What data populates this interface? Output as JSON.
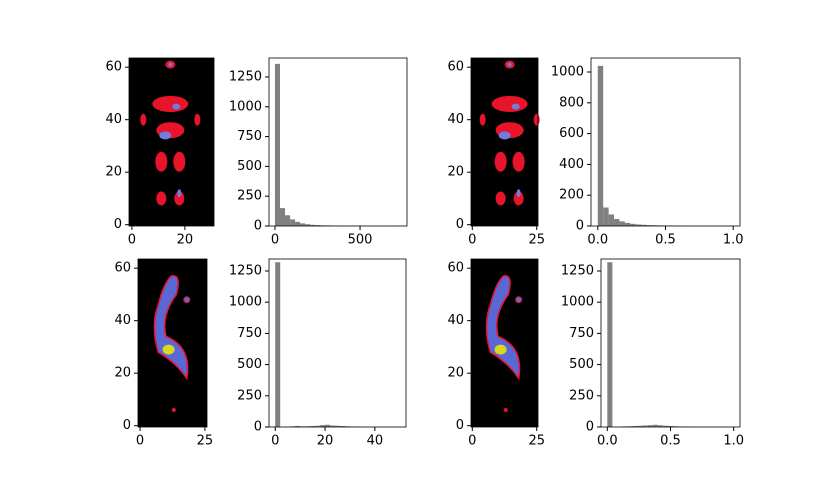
{
  "chart_data": [
    {
      "type": "image",
      "xlim": [
        -1.1,
        31
      ],
      "ylim": [
        -0.5,
        63.5
      ],
      "xticks": [
        0,
        20
      ],
      "yticks": [
        0,
        20,
        40,
        60
      ]
    },
    {
      "type": "histogram",
      "color": "#808080",
      "xlim": [
        -35,
        776
      ],
      "ylim": [
        0,
        1409
      ],
      "xticks": [
        0,
        500
      ],
      "yticks": [
        0,
        250,
        500,
        750,
        1000,
        1250
      ],
      "bins": [
        0,
        29.6,
        59.2,
        88.8,
        118.4,
        148,
        177.6,
        207.2,
        236.8,
        266.4,
        296,
        325.6,
        355.2,
        384.8,
        414.4,
        444,
        473.6,
        503.2,
        532.8,
        562.4,
        592,
        621.6,
        651.2,
        680.8,
        710.4,
        740
      ],
      "values": [
        1360,
        150,
        90,
        55,
        35,
        22,
        15,
        10,
        8,
        6,
        5,
        4,
        3,
        3,
        2,
        2,
        2,
        1,
        1,
        1,
        1,
        1,
        1,
        2,
        3
      ]
    },
    {
      "type": "image",
      "xlim": [
        -0.5,
        25.5
      ],
      "ylim": [
        -0.5,
        63.5
      ],
      "xticks": [
        0,
        25
      ],
      "yticks": [
        0,
        20,
        40,
        60
      ]
    },
    {
      "type": "histogram",
      "color": "#808080",
      "xlim": [
        -0.05,
        1.05
      ],
      "ylim": [
        0,
        1091
      ],
      "xticks": [
        {
          "value": 0,
          "label": "0.0"
        },
        {
          "value": 0.5,
          "label": "0.5"
        },
        {
          "value": 1,
          "label": "1.0"
        }
      ],
      "yticks": [
        0,
        200,
        400,
        600,
        800,
        1000
      ],
      "bins": [
        0,
        0.04,
        0.08,
        0.12,
        0.16,
        0.2,
        0.24,
        0.28,
        0.32,
        0.36,
        0.4,
        0.44,
        0.48,
        0.52,
        0.56,
        0.6,
        0.64,
        0.68,
        0.72,
        0.76,
        0.8,
        0.84,
        0.88,
        0.92,
        0.96,
        1
      ],
      "values": [
        1040,
        120,
        75,
        45,
        30,
        20,
        14,
        10,
        8,
        6,
        5,
        4,
        3,
        3,
        2,
        2,
        2,
        1,
        1,
        1,
        1,
        1,
        1,
        1,
        2
      ]
    },
    {
      "type": "image",
      "xlim": [
        -0.8,
        25.8
      ],
      "ylim": [
        -0.5,
        63.5
      ],
      "xticks": [
        0,
        25
      ],
      "yticks": [
        0,
        20,
        40,
        60
      ]
    },
    {
      "type": "histogram",
      "color": "#808080",
      "xlim": [
        -2.5,
        52.5
      ],
      "ylim": [
        0,
        1346
      ],
      "xticks": [
        0,
        20,
        40
      ],
      "yticks": [
        0,
        250,
        500,
        750,
        1000,
        1250
      ],
      "bins": [
        0,
        2,
        4,
        6,
        8,
        10,
        12,
        14,
        16,
        18,
        20,
        22,
        24,
        26,
        28,
        30,
        32,
        34,
        36,
        38,
        40,
        42,
        44,
        46,
        48,
        50
      ],
      "values": [
        1320,
        0,
        0,
        5,
        8,
        5,
        6,
        8,
        10,
        15,
        18,
        12,
        10,
        8,
        6,
        4,
        3,
        2,
        0,
        0,
        2,
        0,
        0,
        0,
        0
      ]
    },
    {
      "type": "image",
      "xlim": [
        -0.5,
        25.5
      ],
      "ylim": [
        -0.5,
        63.5
      ],
      "xticks": [
        0,
        25
      ],
      "yticks": [
        0,
        20,
        40,
        60
      ]
    },
    {
      "type": "histogram",
      "color": "#808080",
      "xlim": [
        -0.05,
        1.05
      ],
      "ylim": [
        0,
        1346
      ],
      "xticks": [
        {
          "value": 0,
          "label": "0.0"
        },
        {
          "value": 0.5,
          "label": "0.5"
        },
        {
          "value": 1,
          "label": "1.0"
        }
      ],
      "yticks": [
        0,
        250,
        500,
        750,
        1000,
        1250
      ],
      "bins": [
        0,
        0.04,
        0.08,
        0.12,
        0.16,
        0.2,
        0.24,
        0.28,
        0.32,
        0.36,
        0.4,
        0.44,
        0.48,
        0.52,
        0.56,
        0.6,
        0.64,
        0.68,
        0.72,
        0.76,
        0.8,
        0.84,
        0.88,
        0.92,
        0.96,
        1
      ],
      "values": [
        1320,
        0,
        0,
        5,
        6,
        8,
        10,
        12,
        15,
        18,
        14,
        10,
        8,
        6,
        4,
        3,
        2,
        1,
        0,
        0,
        2,
        0,
        0,
        0,
        0
      ]
    }
  ]
}
